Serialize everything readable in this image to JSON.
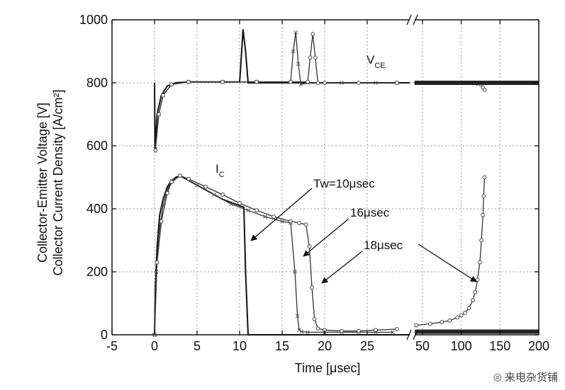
{
  "chart_data": {
    "type": "line",
    "xlabel": "Time [μsec]",
    "ylabel_lines": [
      "Collector-Emitter Voltage [V]",
      "Collector Current Density [A/cm²]"
    ],
    "ylim": [
      0,
      1000
    ],
    "yticks": [
      0,
      200,
      400,
      600,
      800,
      1000
    ],
    "x_segments": [
      {
        "xlim": [
          -5,
          30
        ],
        "ticks": [
          -5,
          0,
          5,
          10,
          15,
          20,
          25
        ]
      },
      {
        "xlim": [
          40,
          200
        ],
        "ticks": [
          50,
          100,
          150,
          200
        ]
      }
    ],
    "annotations": {
      "vce": {
        "main": "V",
        "sub": "CE"
      },
      "ic": {
        "main": "I",
        "sub": "C"
      },
      "tw10": "Tw=10μsec",
      "tw16": "16μsec",
      "tw18": "18μsec"
    },
    "series": [
      {
        "marker": "line",
        "segment": 0,
        "x": [
          0,
          0.1,
          0.3,
          0.6,
          1,
          1.5,
          2,
          2.5,
          3,
          4,
          6,
          8,
          10,
          10.5,
          10.7,
          11,
          30
        ],
        "y": [
          0,
          150,
          280,
          380,
          430,
          470,
          490,
          500,
          505,
          490,
          460,
          430,
          410,
          405,
          200,
          0,
          0
        ]
      },
      {
        "marker": "line",
        "segment": 0,
        "x": [
          0,
          0.05,
          0.3,
          0.8,
          1.5,
          2.5,
          4,
          10,
          10.1,
          10.4,
          10.7,
          11,
          30
        ],
        "y": [
          800,
          590,
          700,
          760,
          790,
          800,
          803,
          803,
          840,
          970,
          900,
          800,
          800
        ]
      },
      {
        "marker": "cross",
        "segment": 0,
        "x": [
          0,
          0.2,
          0.5,
          1,
          1.5,
          2,
          3,
          5,
          7,
          9,
          11,
          13,
          15,
          16,
          16.5,
          16.8,
          17,
          17.3,
          18,
          20,
          22,
          24,
          26,
          28
        ],
        "y": [
          0,
          200,
          320,
          410,
          460,
          490,
          505,
          475,
          445,
          415,
          395,
          375,
          360,
          355,
          200,
          60,
          15,
          10,
          8,
          8,
          8,
          8,
          8,
          8
        ]
      },
      {
        "marker": "cross",
        "segment": 0,
        "x": [
          0.1,
          0.5,
          1,
          2,
          4,
          8,
          12,
          16,
          16.3,
          16.6,
          16.9,
          17.2,
          18,
          22,
          26,
          28.5
        ],
        "y": [
          590,
          700,
          760,
          795,
          803,
          803,
          803,
          803,
          900,
          960,
          860,
          795,
          800,
          800,
          800,
          800
        ]
      },
      {
        "marker": "circle",
        "segment": 0,
        "x": [
          0,
          0.3,
          0.8,
          1.5,
          2,
          3,
          4,
          6,
          8,
          10,
          12,
          14,
          16,
          17,
          17.8,
          18.2,
          18.5,
          18.8,
          19.2,
          20,
          22,
          24,
          26,
          28.5
        ],
        "y": [
          0,
          230,
          360,
          450,
          485,
          505,
          495,
          470,
          445,
          418,
          395,
          375,
          360,
          355,
          350,
          280,
          150,
          50,
          20,
          15,
          12,
          12,
          15,
          18
        ]
      },
      {
        "marker": "circle",
        "segment": 0,
        "x": [
          0.1,
          0.5,
          1,
          2,
          4,
          8,
          12,
          16,
          18,
          18.3,
          18.6,
          18.9,
          19.2,
          20,
          24,
          28.5
        ],
        "y": [
          585,
          700,
          760,
          795,
          803,
          803,
          803,
          803,
          803,
          880,
          955,
          880,
          800,
          800,
          800,
          800
        ]
      },
      {
        "marker": "circle",
        "segment": 1,
        "x": [
          42,
          60,
          75,
          85,
          95,
          100,
          105,
          110,
          115,
          118,
          121,
          124,
          126,
          128,
          129,
          130
        ],
        "y": [
          30,
          35,
          40,
          45,
          55,
          62,
          70,
          85,
          110,
          135,
          175,
          230,
          300,
          380,
          440,
          500
        ]
      },
      {
        "marker": "circle",
        "segment": 1,
        "x": [
          42,
          80,
          100,
          115,
          120,
          125,
          128,
          130
        ],
        "y": [
          800,
          800,
          800,
          800,
          798,
          795,
          785,
          778
        ]
      },
      {
        "marker": "dense",
        "segment": 1,
        "x": [
          40,
          200
        ],
        "y": [
          800,
          800
        ]
      },
      {
        "marker": "dense",
        "segment": 1,
        "x": [
          40,
          200
        ],
        "y": [
          10,
          10
        ]
      }
    ]
  },
  "watermark": {
    "text": "来电杂货铺",
    "icon": "wechat-icon"
  }
}
